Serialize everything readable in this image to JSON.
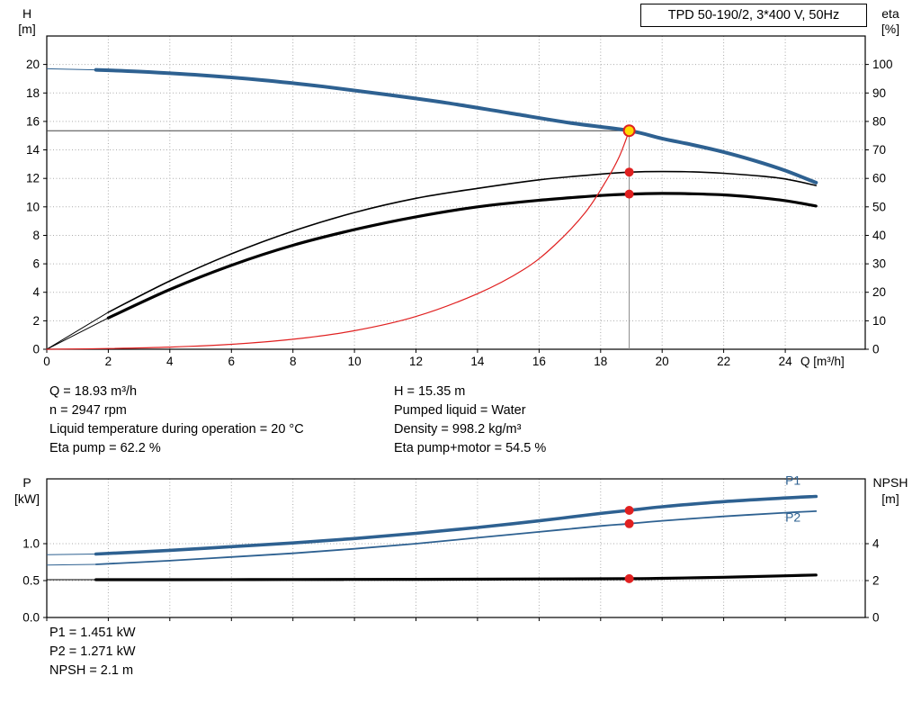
{
  "title_box": "TPD 50-190/2, 3*400 V, 50Hz",
  "annotations": {
    "q": "Q = 18.93 m³/h",
    "n": "n = 2947 rpm",
    "temp": "Liquid temperature during operation = 20 °C",
    "eta_pump": "Eta pump = 62.2 %",
    "h": "H = 15.35 m",
    "liquid": "Pumped liquid = Water",
    "density": "Density = 998.2 kg/m³",
    "eta_pump_motor": "Eta pump+motor = 54.5 %",
    "p1": "P1 = 1.451 kW",
    "p2": "P2 = 1.271 kW",
    "npsh": "NPSH = 2.1 m"
  },
  "colors": {
    "curve_blue": "#2e6191",
    "curve_black": "#000000",
    "curve_red": "#e02020",
    "marker_red": "#e02020",
    "marker_yellow": "#ffd900",
    "grid": "#aaaaaa"
  },
  "chart_data": [
    {
      "type": "line",
      "title": "TPD 50-190/2, 3*400 V, 50Hz",
      "xlabel": "Q [m³/h]",
      "ylabel_left": [
        "H",
        "[m]"
      ],
      "ylabel_right": [
        "eta",
        "[%]"
      ],
      "xlim": [
        0,
        26.6
      ],
      "ylim_left": [
        0,
        22
      ],
      "ylim_right": [
        0,
        110
      ],
      "xticks": [
        {
          "v": 0,
          "t": "0"
        },
        {
          "v": 2,
          "t": "2"
        },
        {
          "v": 4,
          "t": "4"
        },
        {
          "v": 6,
          "t": "6"
        },
        {
          "v": 8,
          "t": "8"
        },
        {
          "v": 10,
          "t": "10"
        },
        {
          "v": 12,
          "t": "12"
        },
        {
          "v": 14,
          "t": "14"
        },
        {
          "v": 16,
          "t": "16"
        },
        {
          "v": 18,
          "t": "18"
        },
        {
          "v": 20,
          "t": "20"
        },
        {
          "v": 22,
          "t": "22"
        },
        {
          "v": 24,
          "t": "24"
        }
      ],
      "yticks_left": [
        {
          "v": 0,
          "t": "0"
        },
        {
          "v": 2,
          "t": "2"
        },
        {
          "v": 4,
          "t": "4"
        },
        {
          "v": 6,
          "t": "6"
        },
        {
          "v": 8,
          "t": "8"
        },
        {
          "v": 10,
          "t": "10"
        },
        {
          "v": 12,
          "t": "12"
        },
        {
          "v": 14,
          "t": "14"
        },
        {
          "v": 16,
          "t": "16"
        },
        {
          "v": 18,
          "t": "18"
        },
        {
          "v": 20,
          "t": "20"
        }
      ],
      "yticks_right": [
        {
          "v": 0,
          "t": "0"
        },
        {
          "v": 10,
          "t": "10"
        },
        {
          "v": 20,
          "t": "20"
        },
        {
          "v": 30,
          "t": "30"
        },
        {
          "v": 40,
          "t": "40"
        },
        {
          "v": 50,
          "t": "50"
        },
        {
          "v": 60,
          "t": "60"
        },
        {
          "v": 70,
          "t": "70"
        },
        {
          "v": 80,
          "t": "80"
        },
        {
          "v": 90,
          "t": "90"
        },
        {
          "v": 100,
          "t": "100"
        }
      ],
      "guides": {
        "q": 18.93,
        "h": 15.35
      },
      "series": [
        {
          "name": "head-curve",
          "axis": "left",
          "color": "#2e6191",
          "width": 4,
          "leader": 1,
          "x": [
            0,
            1.6,
            3,
            5,
            7,
            9,
            11,
            13,
            15,
            17,
            18.93,
            20,
            21,
            22,
            23,
            24,
            25
          ],
          "y": [
            19.7,
            19.62,
            19.5,
            19.25,
            18.9,
            18.45,
            17.9,
            17.3,
            16.6,
            15.9,
            15.35,
            14.8,
            14.35,
            13.85,
            13.25,
            12.55,
            11.7
          ]
        },
        {
          "name": "eta-pump-curve",
          "axis": "right",
          "color": "#000000",
          "width": 1.6,
          "leader": 1,
          "x": [
            0,
            2,
            4,
            6,
            8,
            10,
            12,
            14,
            16,
            18,
            19,
            20,
            21,
            22,
            23,
            24,
            25
          ],
          "y": [
            0,
            13,
            24,
            33.5,
            41.5,
            48,
            53,
            56.5,
            59.5,
            61.5,
            62.2,
            62.4,
            62.3,
            61.8,
            61,
            59.8,
            57.5
          ]
        },
        {
          "name": "eta-pump-motor-curve",
          "axis": "right",
          "color": "#000000",
          "width": 3.2,
          "leader": 1,
          "x": [
            0,
            2,
            4,
            6,
            8,
            10,
            12,
            14,
            16,
            18,
            19,
            20,
            21,
            22,
            23,
            24,
            25
          ],
          "y": [
            0,
            11,
            21,
            29.5,
            36.5,
            42,
            46.5,
            50,
            52.3,
            54,
            54.5,
            54.7,
            54.6,
            54.2,
            53.4,
            52.2,
            50.3
          ]
        },
        {
          "name": "system-curve",
          "axis": "left",
          "color": "#e02020",
          "width": 1.2,
          "x": [
            0,
            2,
            4,
            6,
            8,
            10,
            12,
            14,
            15.5,
            16.5,
            17.5,
            18.2,
            18.6,
            18.93
          ],
          "y": [
            0,
            0.05,
            0.15,
            0.35,
            0.7,
            1.3,
            2.3,
            3.9,
            5.6,
            7.3,
            9.6,
            11.9,
            13.5,
            15.35
          ]
        }
      ],
      "markers": [
        {
          "x": 18.93,
          "y": 62.2,
          "axis": "right",
          "style": "dot"
        },
        {
          "x": 18.93,
          "y": 54.5,
          "axis": "right",
          "style": "dot"
        },
        {
          "x": 18.93,
          "y": 15.35,
          "axis": "left",
          "style": "duty"
        }
      ]
    },
    {
      "type": "line",
      "ylabel_left": [
        "P",
        "[kW]"
      ],
      "ylabel_right": [
        "NPSH",
        "[m]"
      ],
      "xlim": [
        0,
        26.6
      ],
      "ylim_left": [
        0,
        1.878
      ],
      "ylim_right": [
        0,
        7.512
      ],
      "xticks": [
        {
          "v": 0
        },
        {
          "v": 2
        },
        {
          "v": 4
        },
        {
          "v": 6
        },
        {
          "v": 8
        },
        {
          "v": 10
        },
        {
          "v": 12
        },
        {
          "v": 14
        },
        {
          "v": 16
        },
        {
          "v": 18
        },
        {
          "v": 20
        },
        {
          "v": 22
        },
        {
          "v": 24
        }
      ],
      "yticks_left": [
        {
          "v": 0,
          "t": "0.0"
        },
        {
          "v": 0.5,
          "t": "0.5"
        },
        {
          "v": 1,
          "t": "1.0"
        }
      ],
      "yticks_right": [
        {
          "v": 0,
          "t": "0"
        },
        {
          "v": 2,
          "t": "2"
        },
        {
          "v": 4,
          "t": "4"
        }
      ],
      "series": [
        {
          "name": "p1-curve",
          "axis": "left",
          "color": "#2e6191",
          "width": 3.6,
          "leader": 1,
          "x": [
            0,
            1.6,
            4,
            6,
            8,
            10,
            12,
            14,
            16,
            18,
            18.93,
            20,
            22,
            24,
            25
          ],
          "y": [
            0.85,
            0.86,
            0.91,
            0.96,
            1.01,
            1.07,
            1.14,
            1.22,
            1.31,
            1.41,
            1.451,
            1.5,
            1.57,
            1.62,
            1.64
          ]
        },
        {
          "name": "p2-curve",
          "axis": "left",
          "color": "#2e6191",
          "width": 1.8,
          "leader": 1,
          "x": [
            0,
            1.6,
            4,
            6,
            8,
            10,
            12,
            14,
            16,
            18,
            18.93,
            20,
            22,
            24,
            25
          ],
          "y": [
            0.71,
            0.72,
            0.77,
            0.82,
            0.87,
            0.93,
            1.0,
            1.08,
            1.16,
            1.24,
            1.271,
            1.31,
            1.37,
            1.42,
            1.44
          ]
        },
        {
          "name": "npsh-curve",
          "axis": "right",
          "color": "#000000",
          "width": 3.2,
          "leader": 1,
          "x": [
            0,
            1.6,
            4,
            8,
            12,
            16,
            18.93,
            20,
            22,
            24,
            25
          ],
          "y": [
            2.05,
            2.05,
            2.05,
            2.06,
            2.07,
            2.09,
            2.1,
            2.12,
            2.18,
            2.26,
            2.3
          ]
        }
      ],
      "labels": [
        {
          "text": "P1",
          "x": 24.0,
          "y": 1.8,
          "color": "#2e6191"
        },
        {
          "text": "P2",
          "x": 24.0,
          "y": 1.3,
          "color": "#2e6191"
        }
      ],
      "markers": [
        {
          "x": 18.93,
          "y": 1.451,
          "axis": "left",
          "style": "dot"
        },
        {
          "x": 18.93,
          "y": 1.271,
          "axis": "left",
          "style": "dot"
        },
        {
          "x": 18.93,
          "y": 2.1,
          "axis": "right",
          "style": "dot"
        }
      ]
    }
  ]
}
